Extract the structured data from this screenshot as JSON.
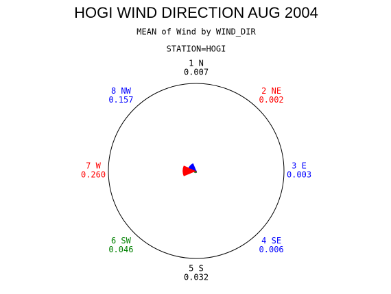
{
  "chart_data": {
    "type": "star",
    "title": "HOGI WIND DIRECTION AUG 2004",
    "subtitle": "MEAN of Wind by WIND_DIR",
    "station": "STATION=HOGI",
    "categories": [
      "1 N",
      "2 NE",
      "3 E",
      "4 SE",
      "5 S",
      "6 SW",
      "7 W",
      "8 NW"
    ],
    "values": [
      0.007,
      0.002,
      0.003,
      0.006,
      0.032,
      0.046,
      0.26,
      0.157
    ],
    "value_labels": [
      "0.007",
      "0.002",
      "0.003",
      "0.006",
      "0.032",
      "0.046",
      "0.260",
      "0.157"
    ],
    "colors": [
      "#000000",
      "#ff0000",
      "#0000ff",
      "#0000ff",
      "#000000",
      "#008000",
      "#ff0000",
      "#0000ff"
    ]
  }
}
